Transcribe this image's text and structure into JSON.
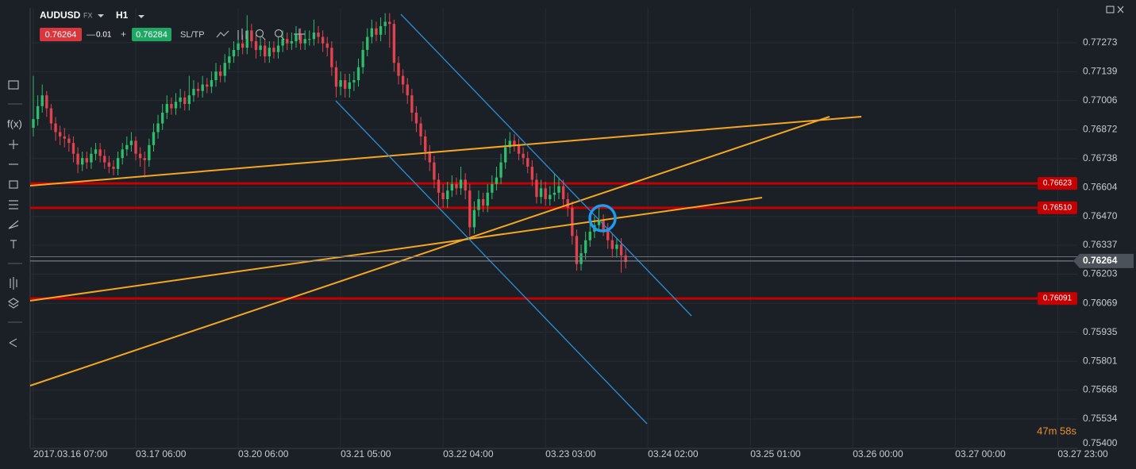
{
  "header": {
    "symbol": "AUDUSD",
    "market": "FX",
    "timeframe": "H1",
    "spread": "0.01",
    "sltp": "SL/TP"
  },
  "toolbar": {
    "fx": "f(x)"
  },
  "timer": "47m 58s",
  "chart_data": {
    "type": "candlestick",
    "title": "AUDUSD",
    "bid": 0.76264,
    "ask": 0.76284,
    "up_color": "#2ebd6b",
    "down_color": "#e0434f",
    "grid": true,
    "xlim": [
      -0.71,
      234.4
    ],
    "ylim": [
      0.75398,
      0.77434
    ],
    "xticks": [
      {
        "value": 0,
        "label": "2017.03.16 07:00"
      },
      {
        "value": 23,
        "label": "03.17 06:00"
      },
      {
        "value": 46,
        "label": "03.20 06:00"
      },
      {
        "value": 69,
        "label": "03.21 05:00"
      },
      {
        "value": 92,
        "label": "03.22 04:00"
      },
      {
        "value": 115,
        "label": "03.23 03:00"
      },
      {
        "value": 138,
        "label": "03.24 02:00"
      },
      {
        "value": 161,
        "label": "03.25 01:00"
      },
      {
        "value": 184,
        "label": "03.26 00:00"
      },
      {
        "value": 207,
        "label": "03.27 00:00"
      },
      {
        "value": 230,
        "label": "03.27 23:00"
      }
    ],
    "yticks": [
      0.77273,
      0.77139,
      0.77006,
      0.76872,
      0.76738,
      0.76604,
      {
        "value": 0.7647,
        "label": "0.76470"
      },
      0.76337,
      0.76203,
      0.76069,
      0.75935,
      0.75801,
      0.75668,
      0.75534,
      {
        "value": 0.754,
        "label": "0.75400"
      }
    ],
    "levels": [
      {
        "value": 0.76623,
        "label": "0.76623",
        "color": "#c40000"
      },
      {
        "value": 0.7651,
        "label": "0.76510",
        "color": "#c40000"
      },
      {
        "value": 0.76091,
        "label": "0.76091",
        "color": "#c40000"
      }
    ],
    "open": [
      0.7688,
      0.7692,
      0.7698,
      0.7703,
      0.7697,
      0.769,
      0.7686,
      0.7684,
      0.7683,
      0.7681,
      0.7676,
      0.7671,
      0.7674,
      0.7672,
      0.7676,
      0.7678,
      0.7675,
      0.7672,
      0.767,
      0.7669,
      0.7674,
      0.7678,
      0.768,
      0.7682,
      0.7676,
      0.7674,
      0.7673,
      0.768,
      0.7686,
      0.769,
      0.7695,
      0.7699,
      0.7697,
      0.77,
      0.7702,
      0.7699,
      0.7703,
      0.7706,
      0.7705,
      0.7708,
      0.7707,
      0.771,
      0.7714,
      0.7712,
      0.7718,
      0.7721,
      0.7724,
      0.7727,
      0.7725,
      0.7733,
      0.7728,
      0.7724,
      0.7726,
      0.7721,
      0.7725,
      0.7723,
      0.7726,
      0.7729,
      0.7727,
      0.7728,
      0.7731,
      0.7727,
      0.7729,
      0.7729,
      0.7732,
      0.773,
      0.7727,
      0.7725,
      0.7716,
      0.7707,
      0.771,
      0.7706,
      0.7709,
      0.771,
      0.7716,
      0.7724,
      0.773,
      0.7734,
      0.7731,
      0.7735,
      0.7737,
      0.7736,
      0.7718,
      0.7712,
      0.7708,
      0.7703,
      0.7695,
      0.769,
      0.7684,
      0.7677,
      0.7672,
      0.7664,
      0.7658,
      0.7655,
      0.7659,
      0.7662,
      0.766,
      0.7664,
      0.7659,
      0.7642,
      0.765,
      0.7655,
      0.7652,
      0.7658,
      0.7662,
      0.7665,
      0.7672,
      0.7679,
      0.7682,
      0.768,
      0.7676,
      0.7674,
      0.767,
      0.7664,
      0.7656,
      0.766,
      0.7655,
      0.7657,
      0.7658,
      0.7661,
      0.7655,
      0.7651,
      0.7638,
      0.7625,
      0.763,
      0.7636,
      0.764,
      0.7643,
      0.7645,
      0.7641,
      0.7636,
      0.7632,
      0.7634,
      0.7629
    ],
    "high": [
      0.7712,
      0.7703,
      0.7708,
      0.7705,
      0.7699,
      0.7693,
      0.7689,
      0.7688,
      0.7685,
      0.7684,
      0.7679,
      0.7677,
      0.7677,
      0.7679,
      0.7681,
      0.7681,
      0.7678,
      0.7675,
      0.7673,
      0.7677,
      0.7681,
      0.7684,
      0.7686,
      0.7684,
      0.7679,
      0.7677,
      0.7683,
      0.769,
      0.7694,
      0.7699,
      0.7703,
      0.7702,
      0.7704,
      0.7706,
      0.7705,
      0.7712,
      0.771,
      0.7709,
      0.7712,
      0.7711,
      0.7714,
      0.7718,
      0.7717,
      0.7722,
      0.7725,
      0.7728,
      0.7731,
      0.7731,
      0.774,
      0.7736,
      0.7731,
      0.773,
      0.7729,
      0.7728,
      0.7728,
      0.773,
      0.7733,
      0.7732,
      0.7732,
      0.7735,
      0.7734,
      0.7733,
      0.7733,
      0.7738,
      0.7735,
      0.7733,
      0.773,
      0.7728,
      0.7719,
      0.7714,
      0.7713,
      0.7713,
      0.7714,
      0.772,
      0.7728,
      0.7734,
      0.7738,
      0.7737,
      0.7739,
      0.7741,
      0.7741,
      0.7738,
      0.7721,
      0.7715,
      0.7711,
      0.7706,
      0.7698,
      0.7693,
      0.7687,
      0.768,
      0.7675,
      0.7667,
      0.7662,
      0.7663,
      0.7666,
      0.7665,
      0.767,
      0.7667,
      0.7662,
      0.7654,
      0.7659,
      0.7658,
      0.7662,
      0.7666,
      0.767,
      0.7676,
      0.7683,
      0.7686,
      0.7685,
      0.7683,
      0.7679,
      0.7677,
      0.7673,
      0.7667,
      0.7664,
      0.7663,
      0.7661,
      0.7667,
      0.7665,
      0.7664,
      0.7658,
      0.7654,
      0.7641,
      0.7634,
      0.764,
      0.7644,
      0.7647,
      0.7651,
      0.7648,
      0.7644,
      0.7639,
      0.7637,
      0.7637,
      0.7632
    ],
    "low": [
      0.7684,
      0.7689,
      0.7695,
      0.7693,
      0.7687,
      0.7682,
      0.768,
      0.7679,
      0.7677,
      0.7672,
      0.7667,
      0.7668,
      0.7669,
      0.7669,
      0.7673,
      0.7672,
      0.7669,
      0.7667,
      0.7666,
      0.7666,
      0.7671,
      0.7675,
      0.7677,
      0.7673,
      0.767,
      0.7665,
      0.767,
      0.7677,
      0.7683,
      0.7687,
      0.7692,
      0.7694,
      0.7694,
      0.7697,
      0.7696,
      0.7696,
      0.77,
      0.7702,
      0.7702,
      0.7704,
      0.7704,
      0.7707,
      0.7709,
      0.7709,
      0.7715,
      0.7718,
      0.7721,
      0.7722,
      0.7722,
      0.7725,
      0.772,
      0.7721,
      0.7718,
      0.7718,
      0.772,
      0.772,
      0.7723,
      0.7724,
      0.7724,
      0.7725,
      0.7724,
      0.7724,
      0.7726,
      0.7726,
      0.7727,
      0.7723,
      0.7721,
      0.7712,
      0.7702,
      0.7703,
      0.7702,
      0.7702,
      0.7705,
      0.7707,
      0.7713,
      0.7721,
      0.7727,
      0.7728,
      0.7728,
      0.7731,
      0.7725,
      0.7714,
      0.7708,
      0.7704,
      0.7699,
      0.7691,
      0.7686,
      0.768,
      0.7673,
      0.7668,
      0.766,
      0.7652,
      0.7651,
      0.7651,
      0.7656,
      0.7657,
      0.7657,
      0.7655,
      0.7638,
      0.7639,
      0.7647,
      0.7649,
      0.7649,
      0.7655,
      0.7659,
      0.7662,
      0.7669,
      0.7676,
      0.7677,
      0.7673,
      0.7671,
      0.7667,
      0.7661,
      0.7653,
      0.7653,
      0.7652,
      0.7652,
      0.7654,
      0.7655,
      0.7652,
      0.7647,
      0.7634,
      0.7622,
      0.7622,
      0.7627,
      0.7633,
      0.7637,
      0.764,
      0.7638,
      0.7632,
      0.7628,
      0.7628,
      0.7621,
      0.7623
    ],
    "close": [
      0.7692,
      0.7698,
      0.7703,
      0.7697,
      0.769,
      0.7686,
      0.7684,
      0.7683,
      0.7681,
      0.7676,
      0.7671,
      0.7674,
      0.7672,
      0.7676,
      0.7678,
      0.7675,
      0.7672,
      0.767,
      0.7669,
      0.7674,
      0.7678,
      0.768,
      0.7682,
      0.7676,
      0.7674,
      0.7673,
      0.768,
      0.7686,
      0.769,
      0.7695,
      0.7699,
      0.7697,
      0.77,
      0.7702,
      0.7699,
      0.7703,
      0.7706,
      0.7705,
      0.7708,
      0.7707,
      0.771,
      0.7714,
      0.7712,
      0.7718,
      0.7721,
      0.7724,
      0.7727,
      0.7725,
      0.7733,
      0.7728,
      0.7724,
      0.7726,
      0.7721,
      0.7725,
      0.7723,
      0.7726,
      0.7729,
      0.7727,
      0.7728,
      0.7731,
      0.7727,
      0.7729,
      0.7729,
      0.7732,
      0.773,
      0.7727,
      0.7725,
      0.7716,
      0.7707,
      0.771,
      0.7706,
      0.7709,
      0.771,
      0.7716,
      0.7724,
      0.773,
      0.7734,
      0.7731,
      0.7735,
      0.7737,
      0.7736,
      0.7718,
      0.7712,
      0.7708,
      0.7703,
      0.7695,
      0.769,
      0.7684,
      0.7677,
      0.7672,
      0.7664,
      0.7658,
      0.7655,
      0.7659,
      0.7662,
      0.766,
      0.7664,
      0.7659,
      0.7642,
      0.765,
      0.7655,
      0.7652,
      0.7658,
      0.7662,
      0.7665,
      0.7672,
      0.7679,
      0.7682,
      0.768,
      0.7676,
      0.7674,
      0.767,
      0.7664,
      0.7656,
      0.766,
      0.7655,
      0.7657,
      0.7658,
      0.7661,
      0.7655,
      0.7651,
      0.7638,
      0.7625,
      0.763,
      0.7636,
      0.764,
      0.7643,
      0.7645,
      0.7641,
      0.7636,
      0.7632,
      0.7634,
      0.7629,
      0.7626
    ]
  }
}
